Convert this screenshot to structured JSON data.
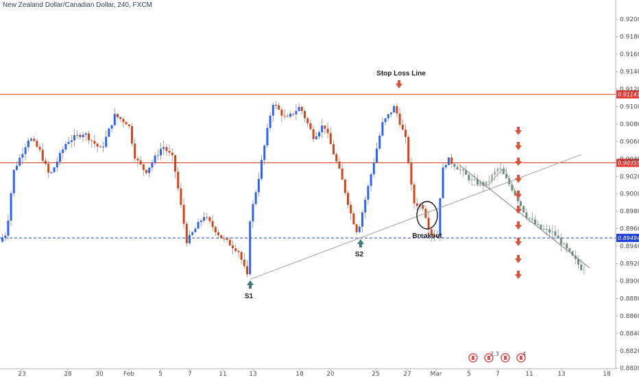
{
  "chart_data": {
    "type": "candlestick",
    "title": "New Zealand Dollar/Canadian Dollar, 240, FXCM",
    "y_axis": {
      "range": [
        0.88,
        0.92
      ],
      "ticks": [
        "0.92000",
        "0.91800",
        "0.91600",
        "0.91400",
        "0.91200",
        "0.91000",
        "0.90800",
        "0.90600",
        "0.90400",
        "0.90200",
        "0.90000",
        "0.89800",
        "0.89600",
        "0.89400",
        "0.89200",
        "0.89000",
        "0.88800",
        "0.88600",
        "0.88400",
        "0.88200",
        "0.88000"
      ]
    },
    "x_axis": {
      "ticks": [
        "23",
        "28",
        "30",
        "Feb",
        "5",
        "7",
        "11",
        "13",
        "18",
        "20",
        "25",
        "27",
        "Mar",
        "5",
        "7",
        "11",
        "13",
        "18"
      ]
    },
    "levels": [
      {
        "name": "stop-loss-level",
        "price": "0.91141",
        "value": 0.9114,
        "color": "#e53935",
        "style": "solid"
      },
      {
        "name": "resistance-level",
        "price": "0.90355",
        "value": 0.90355,
        "color": "#e53935",
        "style": "solid"
      },
      {
        "name": "breakout-level",
        "price": "0.89494",
        "value": 0.89494,
        "color": "#1e3fd8",
        "style": "dashed"
      }
    ],
    "annotations": {
      "stop_loss": "Stop Loss Line",
      "breakout": "Breakout",
      "s1": "S1",
      "s2": "S2",
      "projection_badge": "2.3",
      "projection_badge2": "4"
    },
    "colors": {
      "up": "#2962ff",
      "down": "#d84315",
      "projection": "#5f7f6f",
      "grid": "#eeeeee"
    }
  }
}
